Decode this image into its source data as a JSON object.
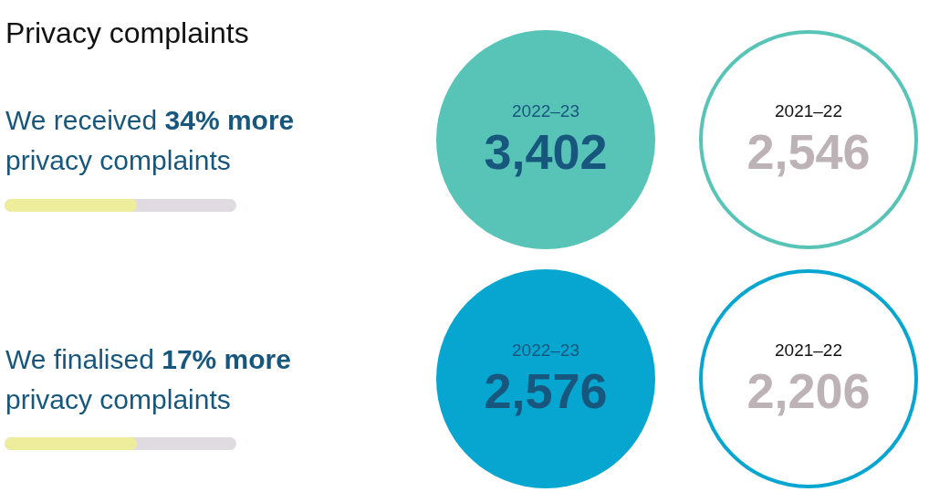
{
  "chart_data": {
    "type": "other",
    "title": "Privacy complaints",
    "categories": [
      "2022–23",
      "2021–22"
    ],
    "series": [
      {
        "name": "We received 34% more privacy complaints",
        "color": "#57c4b7",
        "values": [
          3402,
          2546
        ],
        "value_labels": [
          "3,402",
          "2,546"
        ]
      },
      {
        "name": "We finalised 17% more privacy complaints",
        "color": "#06a6d1",
        "values": [
          2576,
          2206
        ],
        "value_labels": [
          "2,576",
          "2,206"
        ]
      }
    ]
  }
}
